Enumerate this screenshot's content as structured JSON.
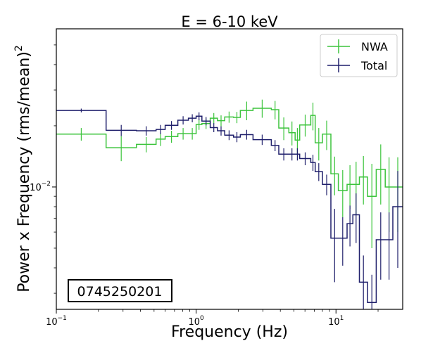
{
  "chart_data": {
    "type": "line",
    "title": "E = 6-10 keV",
    "xlabel": "Frequency (Hz)",
    "ylabel": "Power x Frequency (rms/mean)",
    "ylabel_sup": "2",
    "x_scale": "log",
    "y_scale": "log",
    "xlim": [
      0.1,
      30
    ],
    "ylim": [
      0.0025,
      0.06
    ],
    "x_ticks": [
      {
        "value": 0.1,
        "base": "10",
        "exp": "−1"
      },
      {
        "value": 1,
        "base": "10",
        "exp": "0"
      },
      {
        "value": 10,
        "base": "10",
        "exp": "1"
      }
    ],
    "y_ticks": [
      {
        "value": 0.01,
        "base": "10",
        "exp": "−2"
      }
    ],
    "legend_position": "top-right",
    "annotation": "0745250201",
    "series": [
      {
        "name": "NWA",
        "color": "#3cc43c",
        "bins": [
          [
            0.1,
            0.227,
            0.0182,
            0.0013
          ],
          [
            0.227,
            0.374,
            0.0156,
            0.0022
          ],
          [
            0.374,
            0.517,
            0.0162,
            0.0014
          ],
          [
            0.517,
            0.6,
            0.0172,
            0.0013
          ],
          [
            0.6,
            0.74,
            0.0177,
            0.0012
          ],
          [
            0.74,
            0.88,
            0.0183,
            0.0012
          ],
          [
            0.88,
            1.0,
            0.0183,
            0.0012
          ],
          [
            1.0,
            1.1,
            0.0203,
            0.0012
          ],
          [
            1.1,
            1.26,
            0.0205,
            0.0012
          ],
          [
            1.26,
            1.42,
            0.0218,
            0.0013
          ],
          [
            1.42,
            1.6,
            0.0212,
            0.0013
          ],
          [
            1.6,
            1.85,
            0.0221,
            0.0014
          ],
          [
            1.85,
            2.07,
            0.022,
            0.0014
          ],
          [
            2.07,
            2.55,
            0.0238,
            0.0025
          ],
          [
            2.55,
            3.45,
            0.0244,
            0.0025
          ],
          [
            3.45,
            3.9,
            0.024,
            0.0025
          ],
          [
            3.9,
            4.6,
            0.0195,
            0.0025
          ],
          [
            4.6,
            5.1,
            0.0185,
            0.0025
          ],
          [
            5.1,
            5.5,
            0.017,
            0.0025
          ],
          [
            5.5,
            6.6,
            0.0202,
            0.0025
          ],
          [
            6.6,
            7.1,
            0.0225,
            0.0035
          ],
          [
            7.1,
            8.0,
            0.0165,
            0.003
          ],
          [
            8.0,
            9.2,
            0.0182,
            0.003
          ],
          [
            9.2,
            10.4,
            0.0116,
            0.0025
          ],
          [
            10.4,
            12.0,
            0.0096,
            0.0025
          ],
          [
            12.0,
            13.2,
            0.0103,
            0.0025
          ],
          [
            13.2,
            14.7,
            0.0103,
            0.003
          ],
          [
            14.7,
            16.8,
            0.0112,
            0.003
          ],
          [
            16.8,
            19.4,
            0.009,
            0.004
          ],
          [
            19.4,
            22.5,
            0.0122,
            0.004
          ],
          [
            22.5,
            25.5,
            0.01,
            0.004
          ],
          [
            25.5,
            30.0,
            0.01,
            0.004
          ]
        ]
      },
      {
        "name": "Total",
        "color": "#1f1f6b",
        "bins": [
          [
            0.1,
            0.227,
            0.0238,
            0.0005
          ],
          [
            0.227,
            0.374,
            0.019,
            0.0012
          ],
          [
            0.374,
            0.517,
            0.0189,
            0.001
          ],
          [
            0.517,
            0.6,
            0.0192,
            0.001
          ],
          [
            0.6,
            0.74,
            0.0201,
            0.001
          ],
          [
            0.74,
            0.88,
            0.0213,
            0.001
          ],
          [
            0.88,
            1.0,
            0.0218,
            0.001
          ],
          [
            1.0,
            1.1,
            0.0223,
            0.001
          ],
          [
            1.1,
            1.26,
            0.0211,
            0.001
          ],
          [
            1.26,
            1.42,
            0.0196,
            0.001
          ],
          [
            1.42,
            1.6,
            0.0189,
            0.001
          ],
          [
            1.6,
            1.85,
            0.018,
            0.001
          ],
          [
            1.85,
            2.07,
            0.0176,
            0.001
          ],
          [
            2.07,
            2.55,
            0.0181,
            0.001
          ],
          [
            2.55,
            3.45,
            0.0171,
            0.001
          ],
          [
            3.45,
            3.9,
            0.016,
            0.001
          ],
          [
            3.9,
            4.6,
            0.0145,
            0.001
          ],
          [
            4.6,
            5.1,
            0.0145,
            0.001
          ],
          [
            5.1,
            5.5,
            0.0145,
            0.001
          ],
          [
            5.5,
            6.6,
            0.0138,
            0.001
          ],
          [
            6.6,
            7.1,
            0.0132,
            0.0012
          ],
          [
            7.1,
            8.0,
            0.0119,
            0.0012
          ],
          [
            8.0,
            9.2,
            0.0103,
            0.0012
          ],
          [
            9.2,
            10.4,
            0.0056,
            0.0022
          ],
          [
            10.4,
            12.0,
            0.0056,
            0.0015
          ],
          [
            12.0,
            13.2,
            0.0066,
            0.0015
          ],
          [
            13.2,
            14.7,
            0.0073,
            0.002
          ],
          [
            14.7,
            16.8,
            0.0034,
            0.0012
          ],
          [
            16.8,
            19.4,
            0.0027,
            0.001
          ],
          [
            19.4,
            22.5,
            0.0055,
            0.002
          ],
          [
            22.5,
            25.5,
            0.0055,
            0.002
          ],
          [
            25.5,
            30.0,
            0.008,
            0.004
          ]
        ]
      }
    ]
  }
}
